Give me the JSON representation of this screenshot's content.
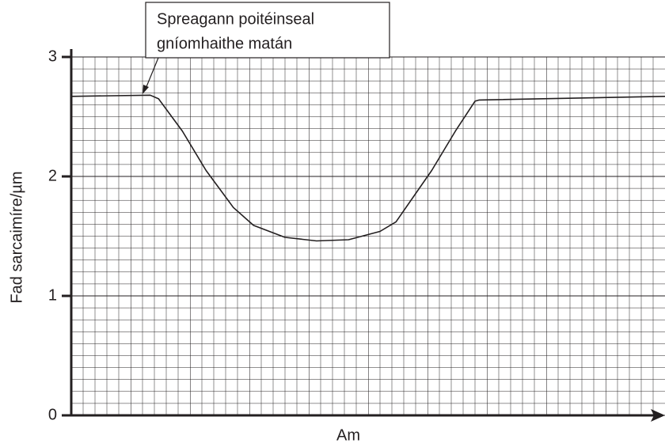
{
  "chart_data": {
    "type": "line",
    "annotation": [
      "Spreagann poitéinseal",
      "gníomhaithe matán"
    ],
    "ylabel": "Fad sarcaimíre/µm",
    "xlabel": "Am",
    "x": [
      0,
      1.33,
      1.47,
      1.87,
      2.27,
      2.73,
      3.07,
      3.6,
      4.13,
      4.67,
      5.2,
      5.47,
      6.07,
      6.47,
      6.8,
      6.87,
      10
    ],
    "series": [
      {
        "color": "#231f20",
        "values": [
          2.67,
          2.68,
          2.65,
          2.38,
          2.05,
          1.74,
          1.59,
          1.49,
          1.46,
          1.47,
          1.54,
          1.62,
          2.05,
          2.38,
          2.63,
          2.64,
          2.67
        ]
      }
    ],
    "xlim": [
      0,
      10
    ],
    "ylim": [
      0,
      3
    ],
    "yticks": [
      0,
      1,
      2,
      3
    ],
    "grid": true
  }
}
